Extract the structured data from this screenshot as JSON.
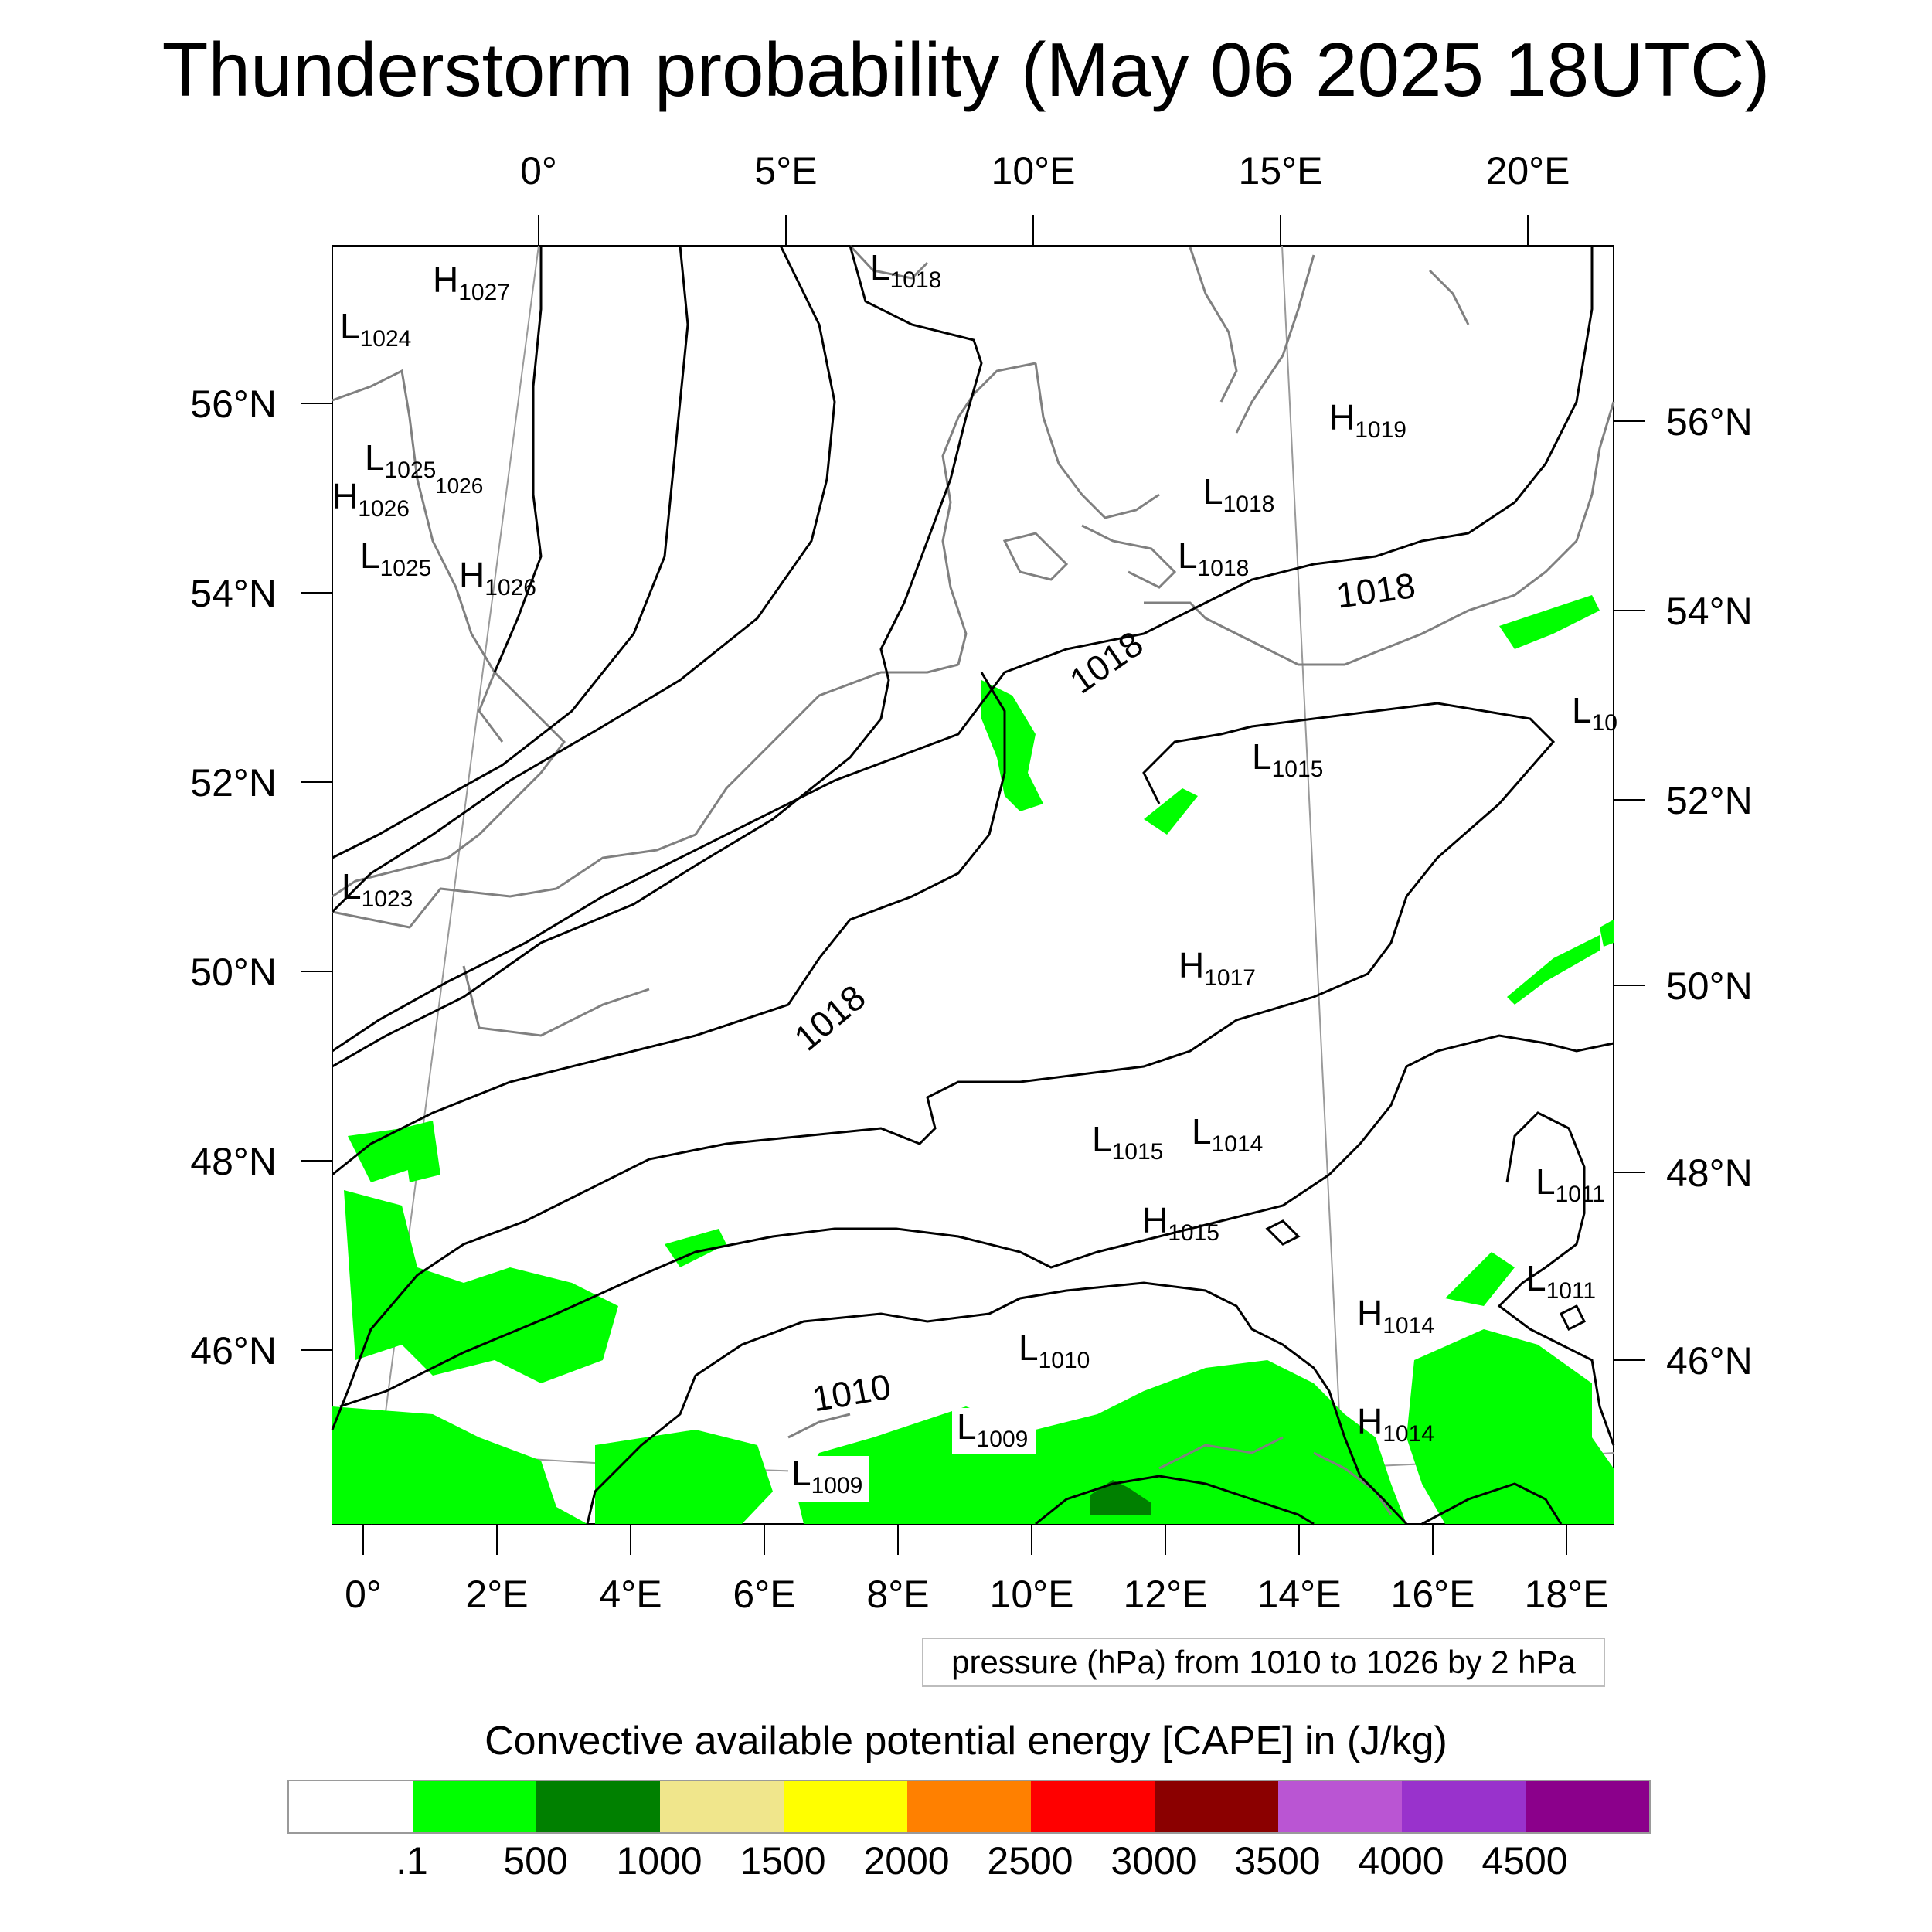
{
  "title": "Thunderstorm probability (May 06 2025 18UTC)",
  "top_lon_labels": [
    "0°",
    "5°E",
    "10°E",
    "15°E",
    "20°E"
  ],
  "bottom_lon_labels": [
    "0°",
    "2°E",
    "4°E",
    "6°E",
    "8°E",
    "10°E",
    "12°E",
    "14°E",
    "16°E",
    "18°E"
  ],
  "left_lat_labels": [
    "56°N",
    "54°N",
    "52°N",
    "50°N",
    "48°N",
    "46°N"
  ],
  "right_lat_labels": [
    "56°N",
    "54°N",
    "52°N",
    "50°N",
    "48°N",
    "46°N"
  ],
  "pressure_centers": [
    {
      "type": "H",
      "value": "1027"
    },
    {
      "type": "L",
      "value": "1024"
    },
    {
      "type": "L",
      "value": "1018"
    },
    {
      "type": "L",
      "value": "1025"
    },
    {
      "type": "H",
      "value": "1026"
    },
    {
      "type": "L",
      "value": "1025"
    },
    {
      "type": "H",
      "value": "1026"
    },
    {
      "type": "L",
      "value": "1023"
    },
    {
      "type": "H",
      "value": "1019"
    },
    {
      "type": "L",
      "value": "1018"
    },
    {
      "type": "L",
      "value": "1018"
    },
    {
      "type": "L",
      "value": "1015"
    },
    {
      "type": "H",
      "value": "1017"
    },
    {
      "type": "L",
      "value": "1015"
    },
    {
      "type": "L",
      "value": "1014"
    },
    {
      "type": "H",
      "value": "1015"
    },
    {
      "type": "L",
      "value": "1011"
    },
    {
      "type": "L",
      "value": "1011"
    },
    {
      "type": "H",
      "value": "1014"
    },
    {
      "type": "H",
      "value": "1014"
    },
    {
      "type": "L",
      "value": "1010"
    },
    {
      "type": "L",
      "value": "1009"
    },
    {
      "type": "L",
      "value": "1009"
    },
    {
      "type": "L",
      "value": "10"
    }
  ],
  "isobar_labels": [
    "1018",
    "1018",
    "1018",
    "1010",
    "1026"
  ],
  "contour_info": "pressure (hPa) from 1010 to 1026 by 2 hPa",
  "colorbar": {
    "title": "Convective available potential energy [CAPE] in (J/kg)",
    "labels": [
      ".1",
      "500",
      "1000",
      "1500",
      "2000",
      "2500",
      "3000",
      "3500",
      "4000",
      "4500"
    ],
    "colors": [
      "#ffffff",
      "#00ff00",
      "#008000",
      "#f0e68c",
      "#ffff00",
      "#ff8000",
      "#ff0000",
      "#8b0000",
      "#ba55d3",
      "#9932cc",
      "#8b008b"
    ]
  },
  "cape_colors": {
    "light_green": "#00ff00",
    "dark_green": "#008000"
  }
}
